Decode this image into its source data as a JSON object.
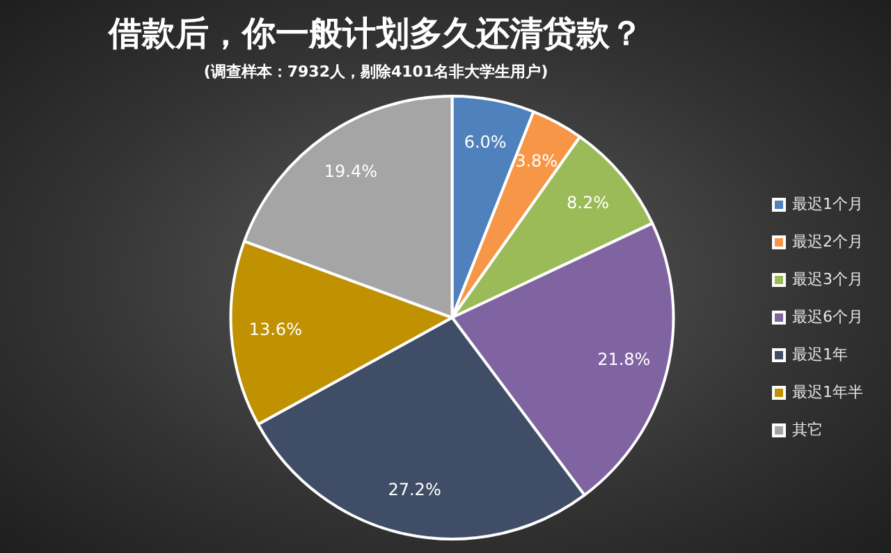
{
  "chart_data": {
    "type": "pie",
    "title": "借款后，你一般计划多久还清贷款？",
    "subtitle": "(调查样本：7932人，剔除4101名非大学生用户)",
    "categories": [
      "最迟1个月",
      "最迟2个月",
      "最迟3个月",
      "最迟6个月",
      "最迟1年",
      "最迟1年半",
      "其它"
    ],
    "values": [
      6.0,
      3.8,
      8.2,
      21.8,
      27.2,
      13.6,
      19.4
    ],
    "colors": [
      "#4f81bd",
      "#f79646",
      "#9bbb59",
      "#8064a2",
      "#3f4d66",
      "#c09100",
      "#a5a5a5"
    ],
    "value_labels": [
      "6.0%",
      "3.8%",
      "8.2%",
      "21.8%",
      "27.2%",
      "13.6%",
      "19.4%"
    ],
    "legend": "right"
  }
}
